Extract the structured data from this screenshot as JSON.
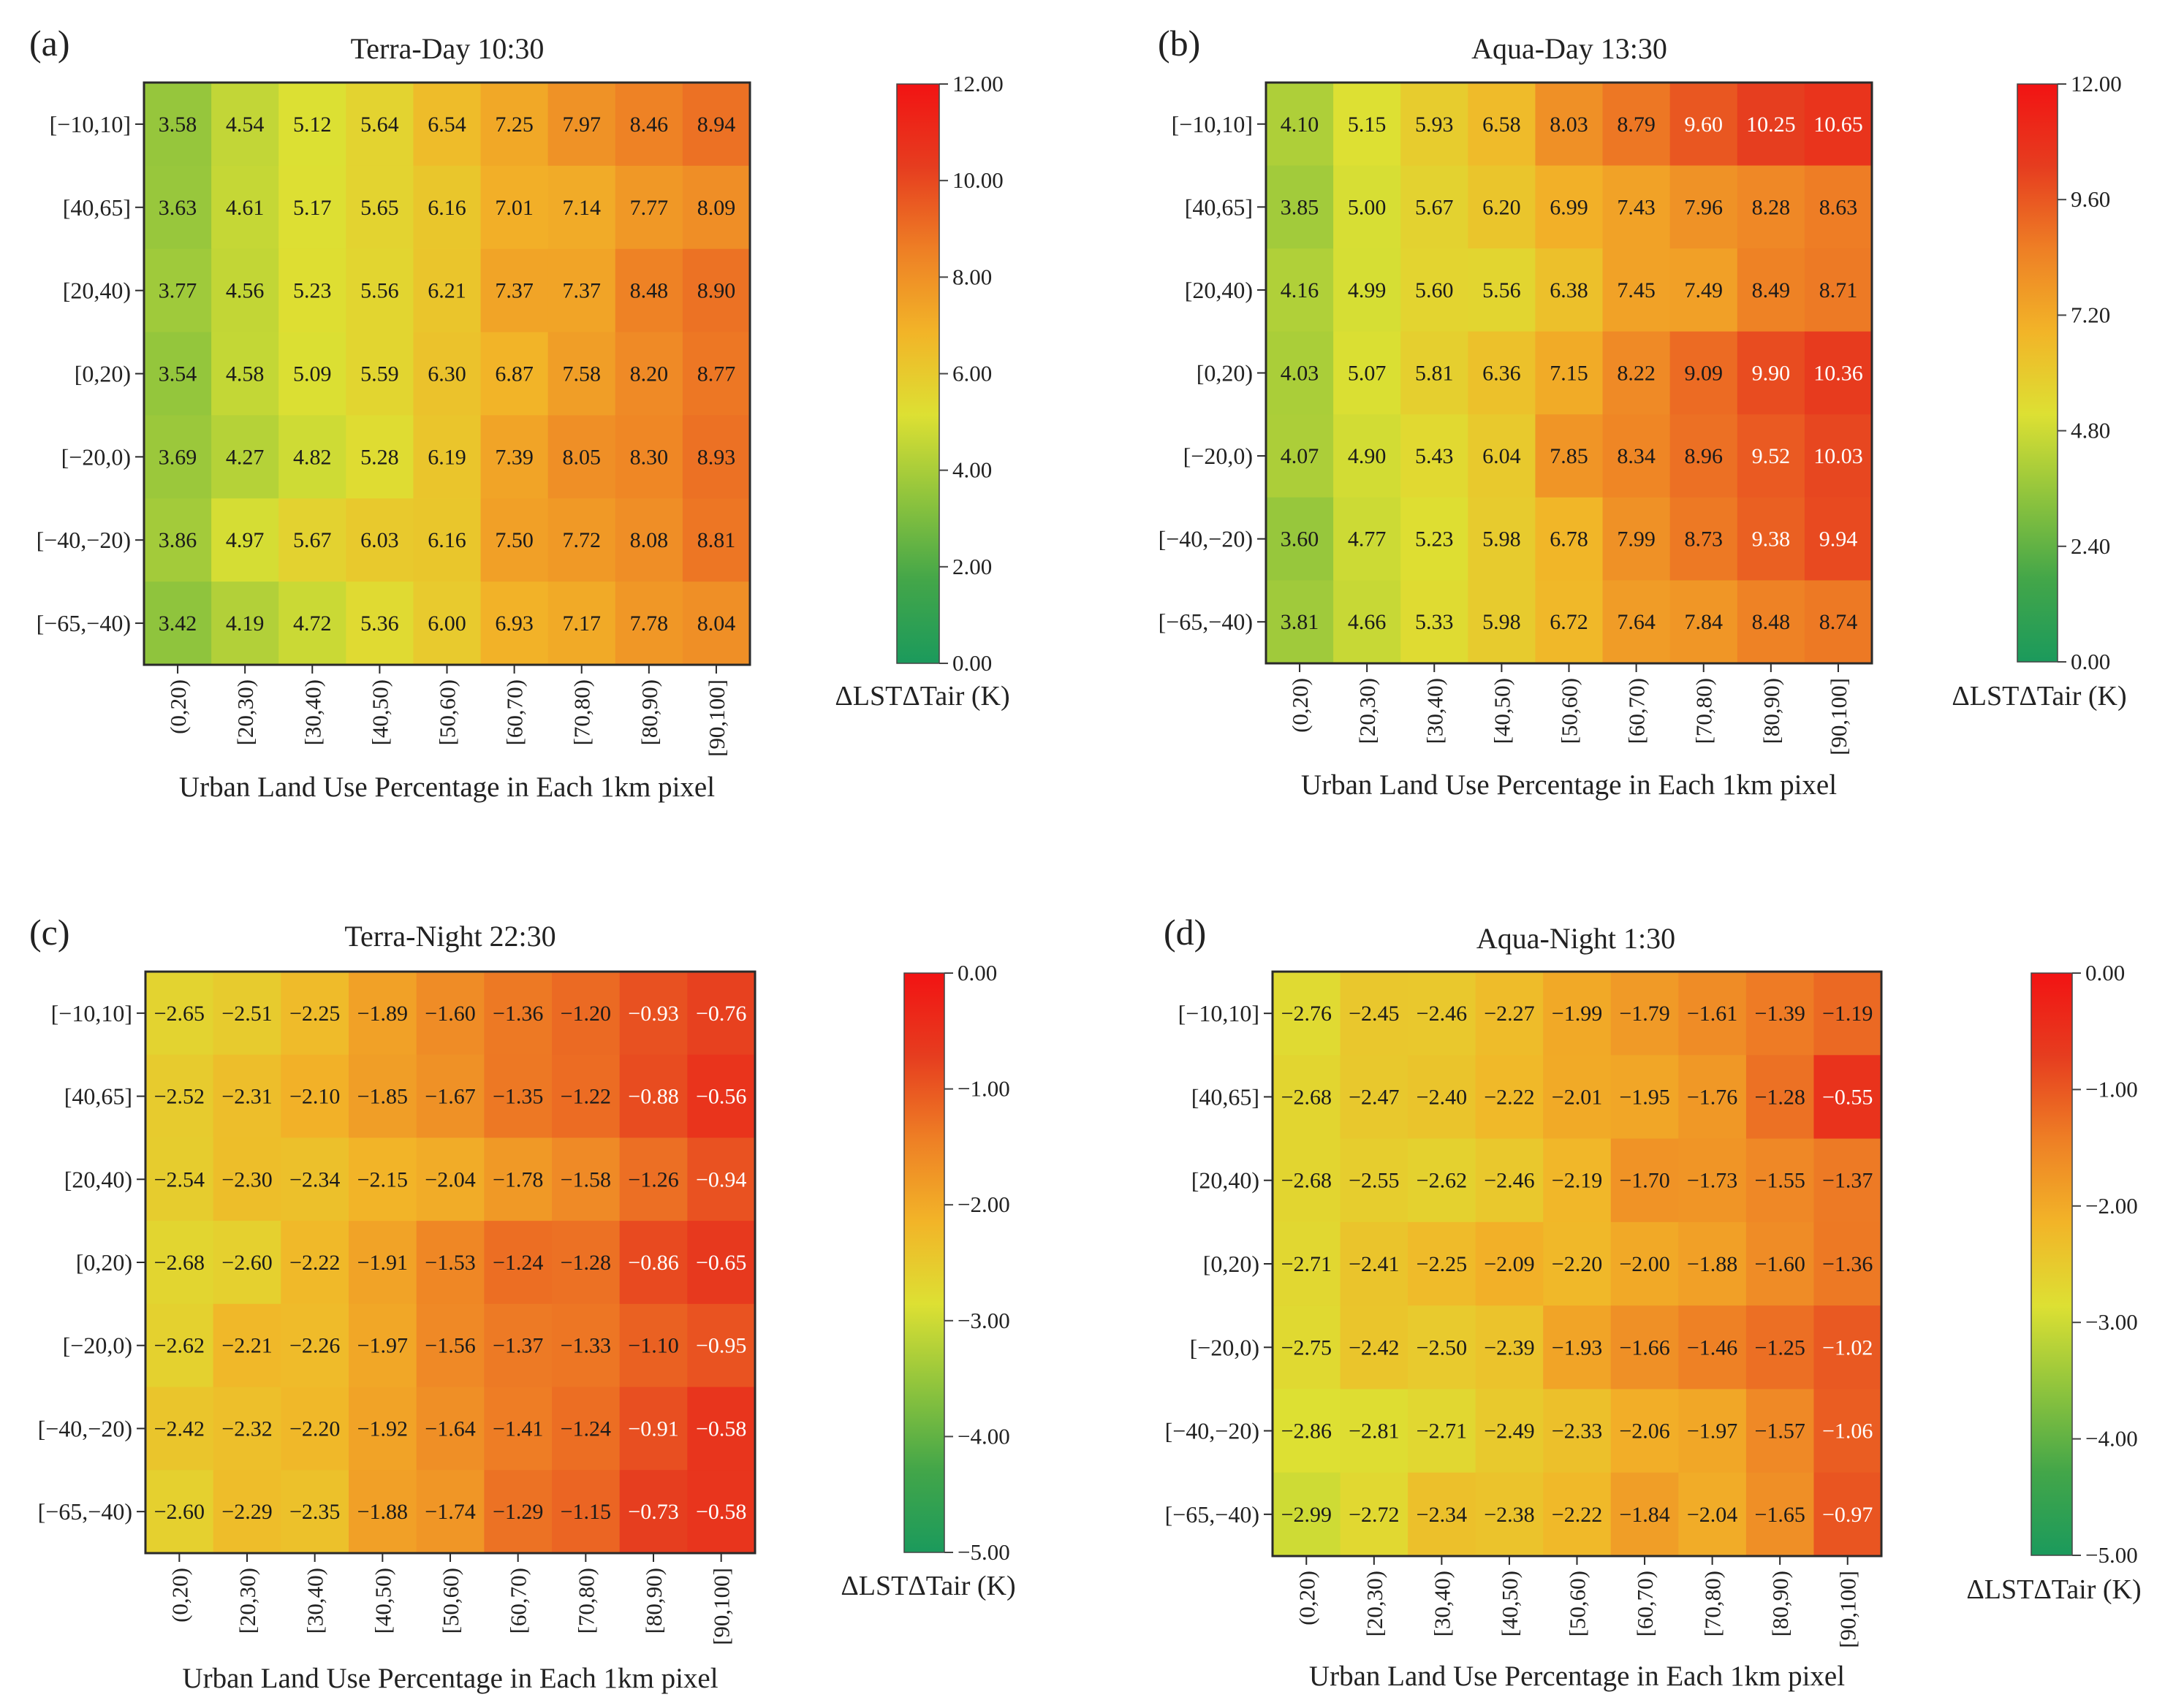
{
  "chart_data": [
    {
      "type": "heatmap",
      "panel_label": "(a)",
      "title": "Terra-Day 10:30",
      "xlabel": "Urban Land Use Percentage in Each 1km pixel",
      "x_categories": [
        "(0,20)",
        "[20,30)",
        "[30,40)",
        "[40,50)",
        "[50,60)",
        "[60,70)",
        "[70,80)",
        "[80,90)",
        "[90,100]"
      ],
      "y_categories": [
        "[−10,10]",
        "[40,65]",
        "[20,40)",
        "[0,20)",
        "[−20,0)",
        "[−40,−20)",
        "[−65,−40)"
      ],
      "values": [
        [
          3.58,
          4.54,
          5.12,
          5.64,
          6.54,
          7.25,
          7.97,
          8.46,
          8.94
        ],
        [
          3.63,
          4.61,
          5.17,
          5.65,
          6.16,
          7.01,
          7.14,
          7.77,
          8.09
        ],
        [
          3.77,
          4.56,
          5.23,
          5.56,
          6.21,
          7.37,
          7.37,
          8.48,
          8.9
        ],
        [
          3.54,
          4.58,
          5.09,
          5.59,
          6.3,
          6.87,
          7.58,
          8.2,
          8.77
        ],
        [
          3.69,
          4.27,
          4.82,
          5.28,
          6.19,
          7.39,
          8.05,
          8.3,
          8.93
        ],
        [
          3.86,
          4.97,
          5.67,
          6.03,
          6.16,
          7.5,
          7.72,
          8.08,
          8.81
        ],
        [
          3.42,
          4.19,
          4.72,
          5.36,
          6.0,
          6.93,
          7.17,
          7.78,
          8.04
        ]
      ],
      "vmin": 0,
      "vmax": 12,
      "colorbar_label": "ΔLSTΔTair  (K)",
      "colorbar_ticks": [
        "0.00",
        "2.00",
        "4.00",
        "6.00",
        "8.00",
        "10.00",
        "12.00"
      ]
    },
    {
      "type": "heatmap",
      "panel_label": "(b)",
      "title": "Aqua-Day 13:30",
      "xlabel": "Urban Land Use Percentage in Each 1km pixel",
      "x_categories": [
        "(0,20)",
        "[20,30)",
        "[30,40)",
        "[40,50)",
        "[50,60)",
        "[60,70)",
        "[70,80)",
        "[80,90)",
        "[90,100]"
      ],
      "y_categories": [
        "[−10,10]",
        "[40,65]",
        "[20,40)",
        "[0,20)",
        "[−20,0)",
        "[−40,−20)",
        "[−65,−40)"
      ],
      "values": [
        [
          4.1,
          5.15,
          5.93,
          6.58,
          8.03,
          8.79,
          9.6,
          10.25,
          10.65
        ],
        [
          3.85,
          5.0,
          5.67,
          6.2,
          6.99,
          7.43,
          7.96,
          8.28,
          8.63
        ],
        [
          4.16,
          4.99,
          5.6,
          5.56,
          6.38,
          7.45,
          7.49,
          8.49,
          8.71
        ],
        [
          4.03,
          5.07,
          5.81,
          6.36,
          7.15,
          8.22,
          9.09,
          9.9,
          10.36
        ],
        [
          4.07,
          4.9,
          5.43,
          6.04,
          7.85,
          8.34,
          8.96,
          9.52,
          10.03
        ],
        [
          3.6,
          4.77,
          5.23,
          5.98,
          6.78,
          7.99,
          8.73,
          9.38,
          9.94
        ],
        [
          3.81,
          4.66,
          5.33,
          5.98,
          6.72,
          7.64,
          7.84,
          8.48,
          8.74
        ]
      ],
      "vmin": 0,
      "vmax": 12,
      "colorbar_label": "ΔLSTΔTair  (K)",
      "colorbar_ticks": [
        "0.00",
        "2.40",
        "4.80",
        "7.20",
        "9.60",
        "12.00"
      ]
    },
    {
      "type": "heatmap",
      "panel_label": "(c)",
      "title": "Terra-Night 22:30",
      "xlabel": "Urban Land Use Percentage in Each 1km pixel",
      "x_categories": [
        "(0,20)",
        "[20,30)",
        "[30,40)",
        "[40,50)",
        "[50,60)",
        "[60,70)",
        "[70,80)",
        "[80,90)",
        "[90,100]"
      ],
      "y_categories": [
        "[−10,10]",
        "[40,65]",
        "[20,40)",
        "[0,20)",
        "[−20,0)",
        "[−40,−20)",
        "[−65,−40)"
      ],
      "values": [
        [
          -2.65,
          -2.51,
          -2.25,
          -1.89,
          -1.6,
          -1.36,
          -1.2,
          -0.93,
          -0.76
        ],
        [
          -2.52,
          -2.31,
          -2.1,
          -1.85,
          -1.67,
          -1.35,
          -1.22,
          -0.88,
          -0.56
        ],
        [
          -2.54,
          -2.3,
          -2.34,
          -2.15,
          -2.04,
          -1.78,
          -1.58,
          -1.26,
          -0.94
        ],
        [
          -2.68,
          -2.6,
          -2.22,
          -1.91,
          -1.53,
          -1.24,
          -1.28,
          -0.86,
          -0.65
        ],
        [
          -2.62,
          -2.21,
          -2.26,
          -1.97,
          -1.56,
          -1.37,
          -1.33,
          -1.1,
          -0.95
        ],
        [
          -2.42,
          -2.32,
          -2.2,
          -1.92,
          -1.64,
          -1.41,
          -1.24,
          -0.91,
          -0.58
        ],
        [
          -2.6,
          -2.29,
          -2.35,
          -1.88,
          -1.74,
          -1.29,
          -1.15,
          -0.73,
          -0.58
        ]
      ],
      "vmin": -5,
      "vmax": 0,
      "colorbar_label": "ΔLSTΔTair  (K)",
      "colorbar_ticks": [
        "−5.00",
        "−4.00",
        "−3.00",
        "−2.00",
        "−1.00",
        "0.00"
      ]
    },
    {
      "type": "heatmap",
      "panel_label": "(d)",
      "title": "Aqua-Night 1:30",
      "xlabel": "Urban Land Use Percentage in Each 1km pixel",
      "x_categories": [
        "(0,20)",
        "[20,30)",
        "[30,40)",
        "[40,50)",
        "[50,60)",
        "[60,70)",
        "[70,80)",
        "[80,90)",
        "[90,100]"
      ],
      "y_categories": [
        "[−10,10]",
        "[40,65]",
        "[20,40)",
        "[0,20)",
        "[−20,0)",
        "[−40,−20)",
        "[−65,−40)"
      ],
      "values": [
        [
          -2.76,
          -2.45,
          -2.46,
          -2.27,
          -1.99,
          -1.79,
          -1.61,
          -1.39,
          -1.19
        ],
        [
          -2.68,
          -2.47,
          -2.4,
          -2.22,
          -2.01,
          -1.95,
          -1.76,
          -1.28,
          -0.55
        ],
        [
          -2.68,
          -2.55,
          -2.62,
          -2.46,
          -2.19,
          -1.7,
          -1.73,
          -1.55,
          -1.37
        ],
        [
          -2.71,
          -2.41,
          -2.25,
          -2.09,
          -2.2,
          -2.0,
          -1.88,
          -1.6,
          -1.36
        ],
        [
          -2.75,
          -2.42,
          -2.5,
          -2.39,
          -1.93,
          -1.66,
          -1.46,
          -1.25,
          -1.02
        ],
        [
          -2.86,
          -2.81,
          -2.71,
          -2.49,
          -2.33,
          -2.06,
          -1.97,
          -1.57,
          -1.06
        ],
        [
          -2.99,
          -2.72,
          -2.34,
          -2.38,
          -2.22,
          -1.84,
          -2.04,
          -1.65,
          -0.97
        ]
      ],
      "vmin": -5,
      "vmax": 0,
      "colorbar_label": "ΔLSTΔTair  (K)",
      "colorbar_ticks": [
        "−5.00",
        "−4.00",
        "−3.00",
        "−2.00",
        "−1.00",
        "0.00"
      ]
    }
  ],
  "colormap": {
    "stops": [
      "#1b9a5c",
      "#43a649",
      "#8fc43d",
      "#dde033",
      "#f2b428",
      "#ee7f25",
      "#e63d1f",
      "#f21313"
    ],
    "white_text_color": "#ffffff",
    "dark_text_color": "#1a1a1a"
  }
}
